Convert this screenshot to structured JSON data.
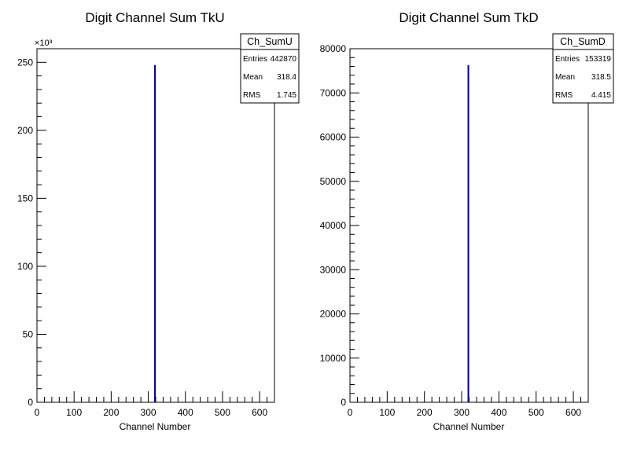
{
  "chart_data": [
    {
      "type": "bar",
      "title": "Digit Channel Sum TkU",
      "xlabel": "Channel Number",
      "ylabel": "",
      "y_exponent_label": "×10³",
      "xlim": [
        0,
        640
      ],
      "ylim": [
        0,
        260
      ],
      "x_ticks": [
        "0",
        "100",
        "200",
        "300",
        "400",
        "500",
        "600"
      ],
      "y_ticks": [
        "0",
        "50",
        "100",
        "150",
        "200",
        "250"
      ],
      "series": [
        {
          "x": [
            318
          ],
          "values": [
            248
          ]
        }
      ],
      "stats": {
        "name": "Ch_SumU",
        "rows": [
          {
            "label": "Entries",
            "value": "442870"
          },
          {
            "label": "Mean",
            "value": "318.4"
          },
          {
            "label": "RMS",
            "value": "1.745"
          }
        ]
      },
      "colors": {
        "bar": "#000080"
      }
    },
    {
      "type": "bar",
      "title": "Digit Channel Sum TkD",
      "xlabel": "Channel Number",
      "ylabel": "",
      "y_exponent_label": "",
      "xlim": [
        0,
        640
      ],
      "ylim": [
        0,
        80000
      ],
      "x_ticks": [
        "0",
        "100",
        "200",
        "300",
        "400",
        "500",
        "600"
      ],
      "y_ticks": [
        "0",
        "10000",
        "20000",
        "30000",
        "40000",
        "50000",
        "60000",
        "70000",
        "80000"
      ],
      "series": [
        {
          "x": [
            318
          ],
          "values": [
            76300
          ]
        }
      ],
      "stats": {
        "name": "Ch_SumD",
        "rows": [
          {
            "label": "Entries",
            "value": "153319"
          },
          {
            "label": "Mean",
            "value": "318.5"
          },
          {
            "label": "RMS",
            "value": "4.415"
          }
        ]
      },
      "colors": {
        "bar": "#000080"
      }
    }
  ]
}
